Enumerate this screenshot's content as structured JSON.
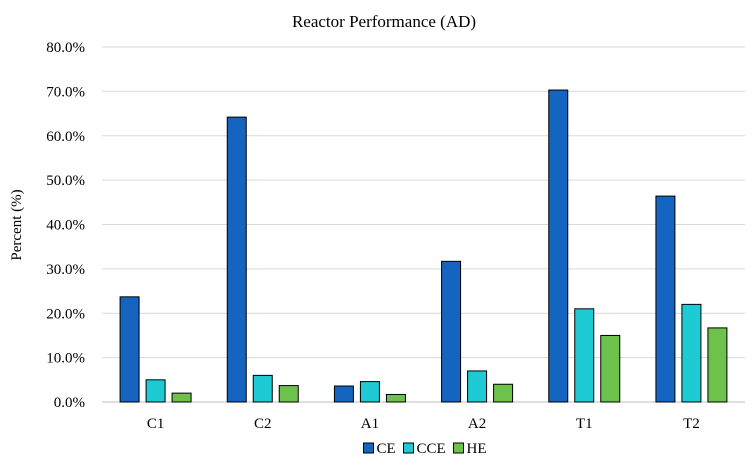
{
  "chart_data": {
    "type": "bar",
    "title": "Reactor Performance (AD)",
    "xlabel": "",
    "ylabel": "Percent (%)",
    "categories": [
      "C1",
      "C2",
      "A1",
      "A2",
      "T1",
      "T2"
    ],
    "series": [
      {
        "name": "CE",
        "color": "#1565c0",
        "values": [
          23.7,
          64.2,
          3.6,
          31.7,
          70.3,
          46.4
        ]
      },
      {
        "name": "CCE",
        "color": "#1ecad3",
        "values": [
          5.0,
          6.0,
          4.6,
          7.0,
          21.0,
          22.0
        ]
      },
      {
        "name": "HE",
        "color": "#6cc24a",
        "values": [
          2.0,
          3.7,
          1.7,
          4.0,
          15.0,
          16.7
        ]
      }
    ],
    "ylim": [
      0,
      80
    ],
    "yticks": [
      "0.0%",
      "10.0%",
      "20.0%",
      "30.0%",
      "40.0%",
      "50.0%",
      "60.0%",
      "70.0%",
      "80.0%"
    ],
    "grid": true,
    "legend_position": "bottom"
  }
}
